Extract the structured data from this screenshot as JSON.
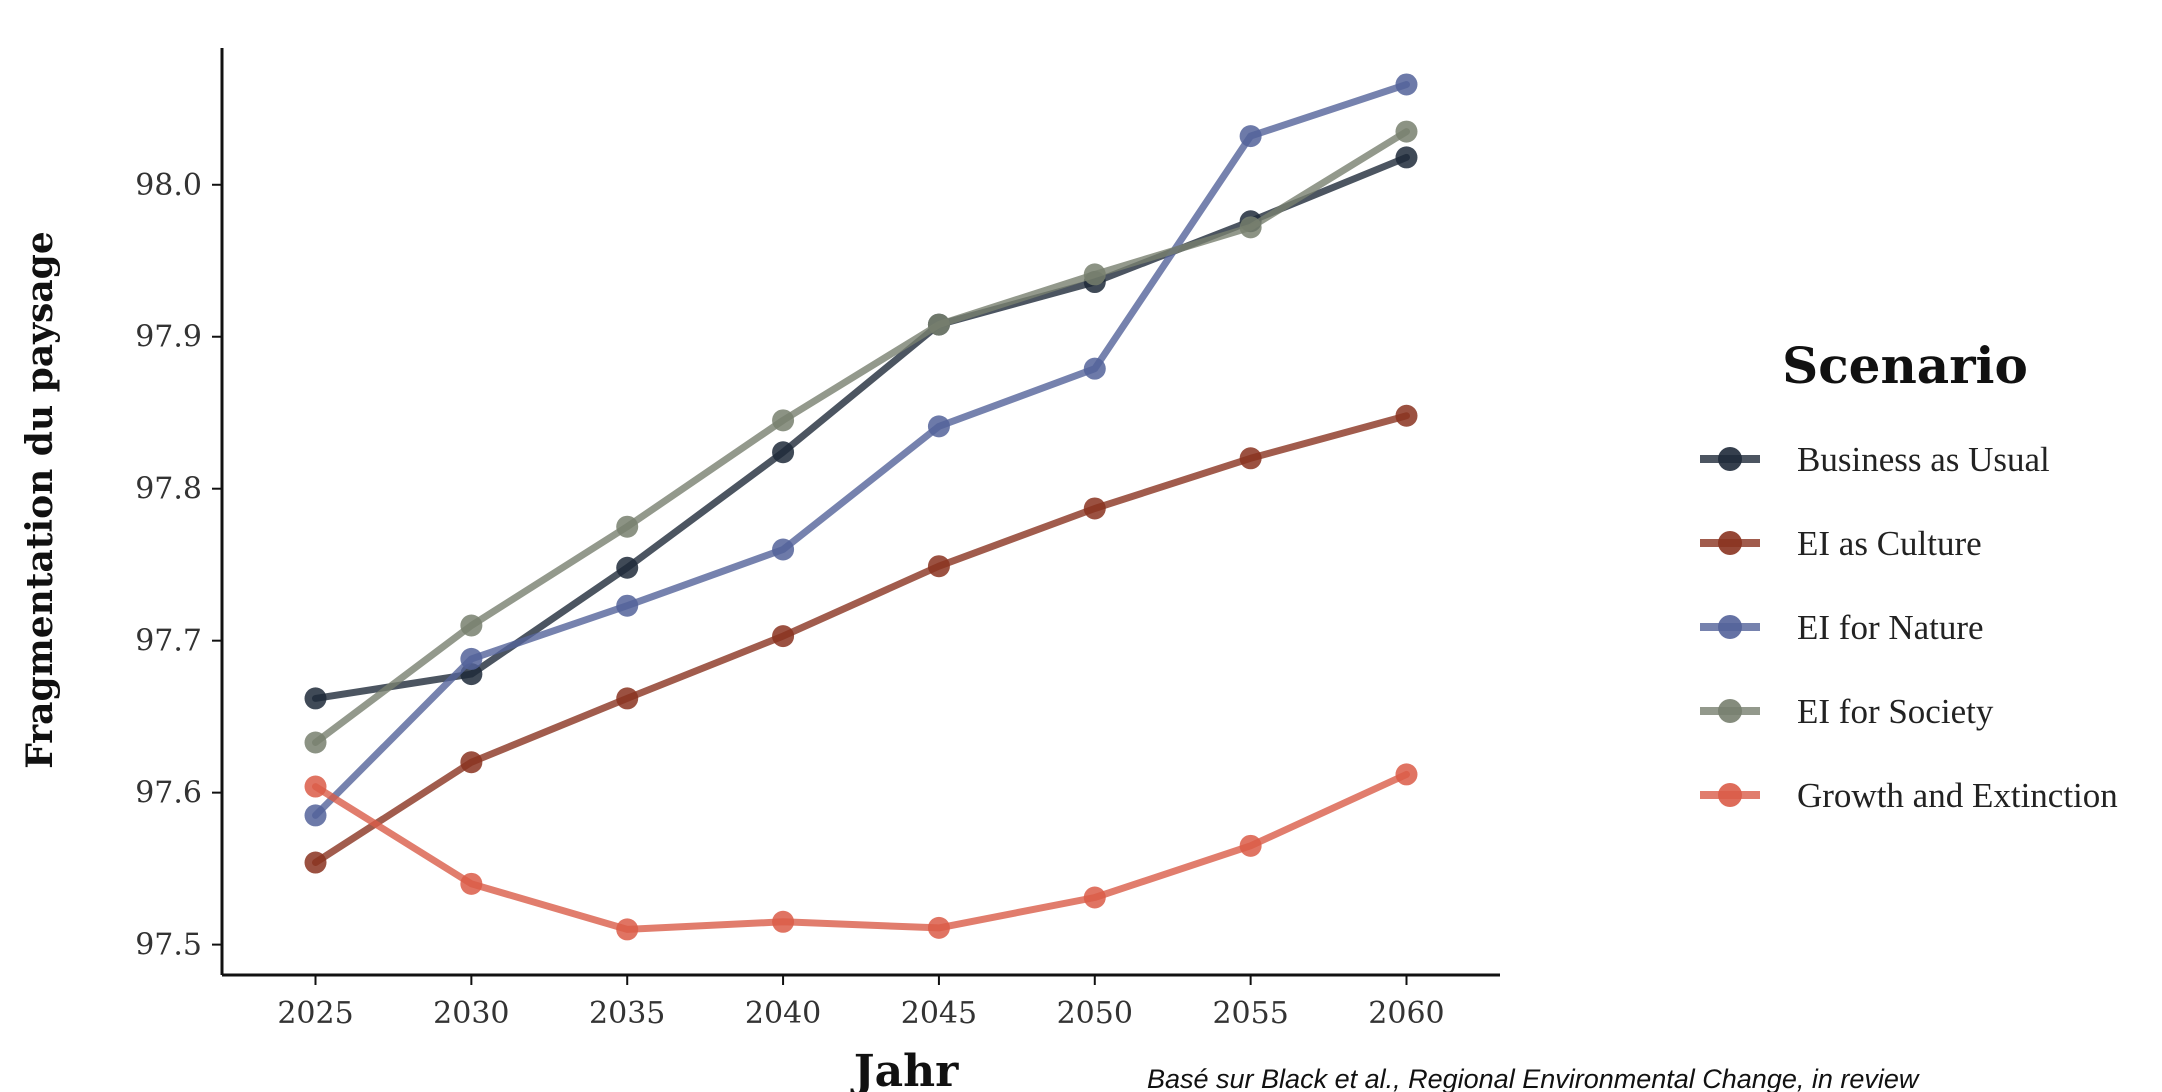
{
  "chart_data": {
    "type": "line",
    "xlabel": "Jahr",
    "ylabel": "Fragmentation du paysage",
    "xlim": [
      2022,
      2063
    ],
    "ylim": [
      97.48,
      98.09
    ],
    "x": [
      2025,
      2030,
      2035,
      2040,
      2045,
      2050,
      2055,
      2060
    ],
    "x_ticks": [
      2025,
      2030,
      2035,
      2040,
      2045,
      2050,
      2055,
      2060
    ],
    "y_ticks": [
      97.5,
      97.6,
      97.7,
      97.8,
      97.9,
      98.0
    ],
    "y_tick_labels": [
      "97.5",
      "97.6",
      "97.7",
      "97.8",
      "97.9",
      "98.0"
    ],
    "grid": false,
    "legend": {
      "title": "Scenario",
      "placement": "right"
    },
    "series": [
      {
        "name": "Business as Usual",
        "color": "#1f2a3a",
        "values": [
          97.662,
          97.678,
          97.748,
          97.824,
          97.908,
          97.936,
          97.976,
          98.018
        ]
      },
      {
        "name": "EI as Culture",
        "color": "#8a3320",
        "values": [
          97.554,
          97.62,
          97.662,
          97.703,
          97.749,
          97.787,
          97.82,
          97.848
        ]
      },
      {
        "name": "EI for Nature",
        "color": "#54639a",
        "values": [
          97.585,
          97.688,
          97.723,
          97.76,
          97.841,
          97.879,
          98.032,
          98.066
        ]
      },
      {
        "name": "EI for Society",
        "color": "#78806f",
        "values": [
          97.633,
          97.71,
          97.775,
          97.845,
          97.908,
          97.941,
          97.972,
          98.035
        ]
      },
      {
        "name": "Growth and Extinction",
        "color": "#da5c48",
        "values": [
          97.604,
          97.54,
          97.51,
          97.515,
          97.511,
          97.531,
          97.565,
          97.612
        ]
      }
    ],
    "caption": "Basé sur Black et al., Regional Environmental Change, in review"
  }
}
